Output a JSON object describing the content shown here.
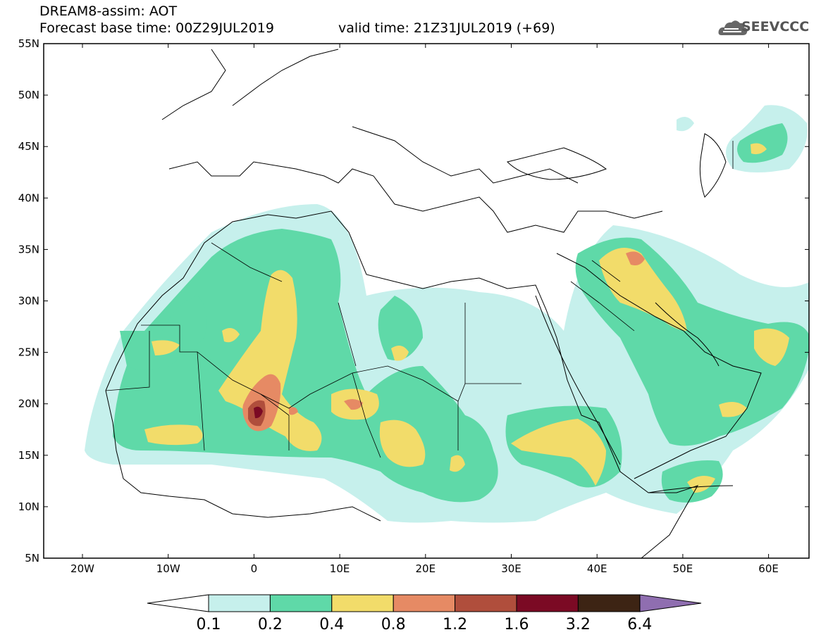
{
  "header": {
    "title": "DREAM8-assim: AOT",
    "base_time": "Forecast base time: 00Z29JUL2019",
    "valid_time": "valid time: 21Z31JUL2019 (+69)",
    "logo_text": "SEEVCCC"
  },
  "axes": {
    "lat_labels": [
      "55N",
      "50N",
      "45N",
      "40N",
      "35N",
      "30N",
      "25N",
      "20N",
      "15N",
      "10N",
      "5N"
    ],
    "lon_labels": [
      "20W",
      "10W",
      "0",
      "10E",
      "20E",
      "30E",
      "40E",
      "50E",
      "60E"
    ]
  },
  "colorbar": {
    "labels": [
      "0.1",
      "0.2",
      "0.4",
      "0.8",
      "1.2",
      "1.6",
      "3.2",
      "6.4"
    ],
    "colors": [
      "#c6f0ec",
      "#5fd9a8",
      "#f2dc6a",
      "#e68a64",
      "#b04e3c",
      "#7b0a24",
      "#3d2414",
      "#8f6eb0"
    ]
  }
}
